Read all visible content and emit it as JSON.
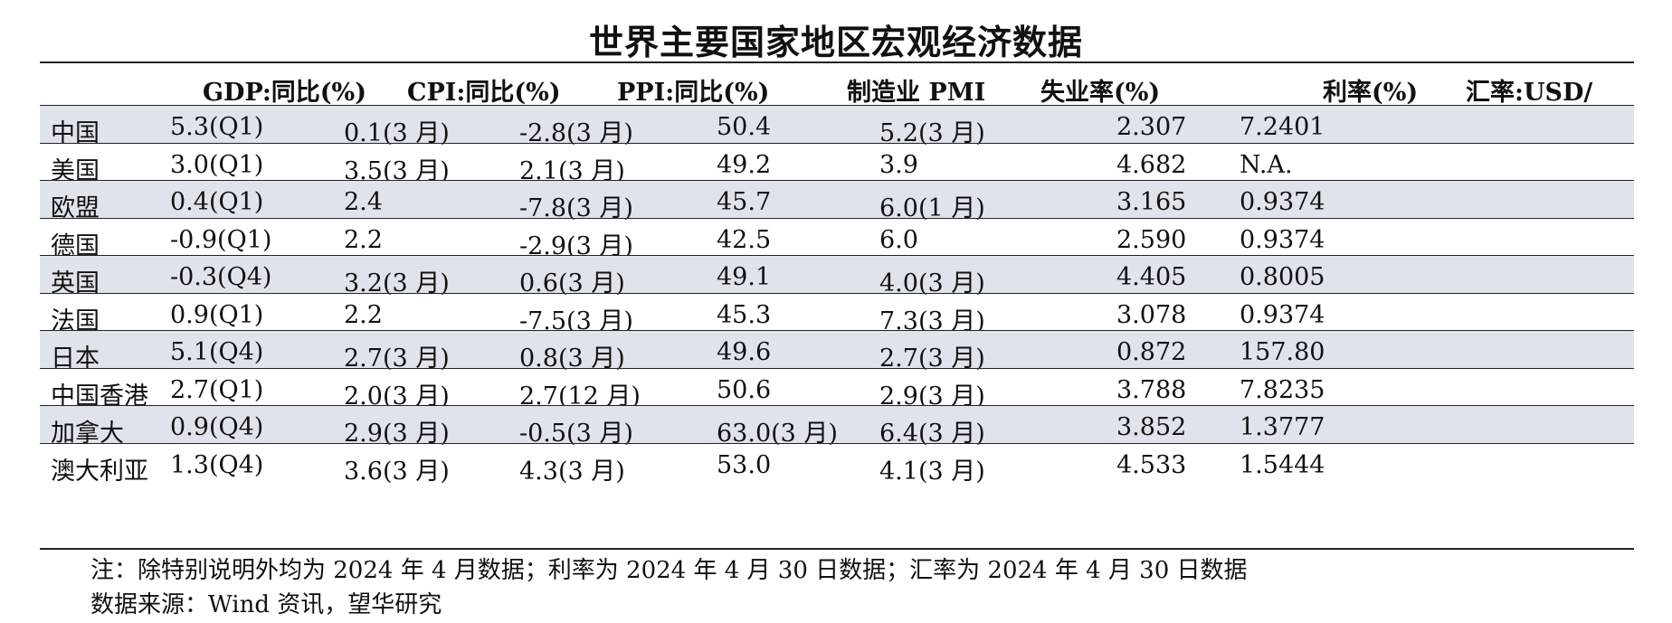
{
  "title": "世界主要国家地区宏观经济数据",
  "columns": [
    "",
    "GDP:同比(%)",
    "CPI:同比(%)",
    "PPI:同比(%)",
    "制造业 PMI",
    "失业率(%)",
    "利率(%)",
    "汇率:USD/"
  ],
  "rows": [
    {
      "region": "中国",
      "gdp": "5.3(Q1)",
      "cpi": "0.1(3 月)",
      "ppi": "-2.8(3 月)",
      "pmi": "50.4",
      "unemp": "5.2(3 月)",
      "rate": "2.307",
      "fx": "7.2401"
    },
    {
      "region": "美国",
      "gdp": "3.0(Q1)",
      "cpi": "3.5(3 月)",
      "ppi": "2.1(3 月)",
      "pmi": "49.2",
      "unemp": "3.9",
      "rate": "4.682",
      "fx": "N.A."
    },
    {
      "region": "欧盟",
      "gdp": "0.4(Q1)",
      "cpi": "2.4",
      "ppi": "-7.8(3 月)",
      "pmi": "45.7",
      "unemp": "6.0(1 月)",
      "rate": "3.165",
      "fx": "0.9374"
    },
    {
      "region": "德国",
      "gdp": "-0.9(Q1)",
      "cpi": "2.2",
      "ppi": "-2.9(3 月)",
      "pmi": "42.5",
      "unemp": "6.0",
      "rate": "2.590",
      "fx": "0.9374"
    },
    {
      "region": "英国",
      "gdp": "-0.3(Q4)",
      "cpi": "3.2(3 月)",
      "ppi": "0.6(3 月)",
      "pmi": "49.1",
      "unemp": "4.0(3 月)",
      "rate": "4.405",
      "fx": "0.8005"
    },
    {
      "region": "法国",
      "gdp": "0.9(Q1)",
      "cpi": "2.2",
      "ppi": "-7.5(3 月)",
      "pmi": "45.3",
      "unemp": "7.3(3 月)",
      "rate": "3.078",
      "fx": "0.9374"
    },
    {
      "region": "日本",
      "gdp": "5.1(Q4)",
      "cpi": "2.7(3 月)",
      "ppi": "0.8(3 月)",
      "pmi": "49.6",
      "unemp": "2.7(3 月)",
      "rate": "0.872",
      "fx": "157.80"
    },
    {
      "region": "中国香港",
      "gdp": "2.7(Q1)",
      "cpi": "2.0(3 月)",
      "ppi": "2.7(12 月)",
      "pmi": "50.6",
      "unemp": "2.9(3 月)",
      "rate": "3.788",
      "fx": "7.8235"
    },
    {
      "region": "加拿大",
      "gdp": "0.9(Q4)",
      "cpi": "2.9(3 月)",
      "ppi": "-0.5(3 月)",
      "pmi": "63.0(3 月)",
      "unemp": "6.4(3 月)",
      "rate": "3.852",
      "fx": "1.3777"
    },
    {
      "region": "澳大利亚",
      "gdp": "1.3(Q4)",
      "cpi": "3.6(3 月)",
      "ppi": "4.3(3 月)",
      "pmi": "53.0",
      "unemp": "4.1(3 月)",
      "rate": "4.533",
      "fx": "1.5444"
    }
  ],
  "note": "注：除特别说明外均为 2024 年 4 月数据；利率为 2024 年 4 月 30 日数据；汇率为 2024 年 4 月 30 日数据",
  "source": "数据来源：Wind 资讯，望华研究",
  "colors": {
    "shaded_row": "#dfe3ec",
    "rule": "#222222"
  }
}
